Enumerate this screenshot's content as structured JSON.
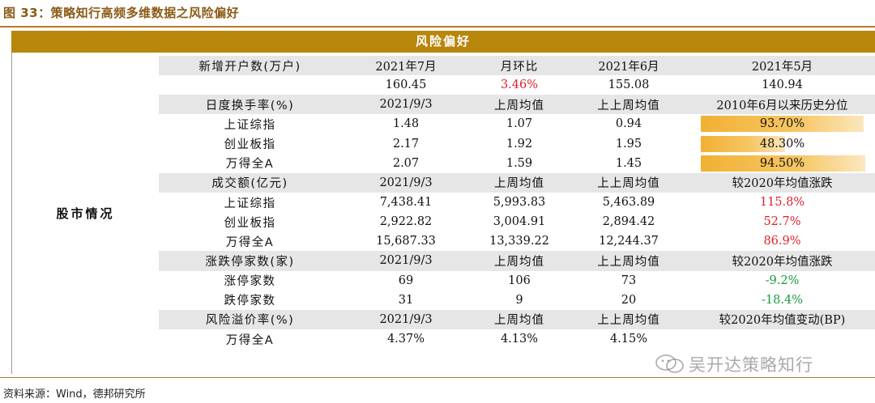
{
  "figure": {
    "title": "图 33：策略知行高频多维数据之风险偏好",
    "header": "风险偏好",
    "side_label": "股市情况"
  },
  "rows": [
    {
      "shade": true,
      "cells": [
        "新增开户数(万户)",
        "2021年7月",
        "月环比",
        "2021年6月",
        "2021年5月"
      ]
    },
    {
      "shade": false,
      "cells": [
        "",
        "160.45",
        "3.46%",
        "155.08",
        "140.94"
      ],
      "colors": [
        "",
        "",
        "red",
        "",
        ""
      ]
    },
    {
      "shade": true,
      "cells": [
        "日度换手率(%)",
        "2021/9/3",
        "上周均值",
        "上上周均值",
        "2010年6月以来历史分位"
      ]
    },
    {
      "shade": false,
      "cells": [
        "上证综指",
        "1.48",
        "1.07",
        "0.94",
        "93.70%"
      ],
      "bar": 0.937
    },
    {
      "shade": false,
      "cells": [
        "创业板指",
        "2.17",
        "1.92",
        "1.95",
        "48.30%"
      ],
      "bar": 0.483
    },
    {
      "shade": false,
      "cells": [
        "万得全A",
        "2.07",
        "1.59",
        "1.45",
        "94.50%"
      ],
      "bar": 0.945
    },
    {
      "shade": true,
      "cells": [
        "成交额(亿元)",
        "2021/9/3",
        "上周均值",
        "上上周均值",
        "较2020年均值涨跌"
      ]
    },
    {
      "shade": false,
      "cells": [
        "上证综指",
        "7,438.41",
        "5,993.83",
        "5,463.89",
        "115.8%"
      ],
      "colors": [
        "",
        "",
        "",
        "",
        "red"
      ]
    },
    {
      "shade": false,
      "cells": [
        "创业板指",
        "2,922.82",
        "3,004.91",
        "2,894.42",
        "52.7%"
      ],
      "colors": [
        "",
        "",
        "",
        "",
        "red"
      ]
    },
    {
      "shade": false,
      "cells": [
        "万得全A",
        "15,687.33",
        "13,339.22",
        "12,244.37",
        "86.9%"
      ],
      "colors": [
        "",
        "",
        "",
        "",
        "red"
      ]
    },
    {
      "shade": true,
      "cells": [
        "涨跌停家数(家)",
        "2021/9/3",
        "上周均值",
        "上上周均值",
        "较2020年均值涨跌"
      ]
    },
    {
      "shade": false,
      "cells": [
        "涨停家数",
        "69",
        "106",
        "73",
        "-9.2%"
      ],
      "colors": [
        "",
        "",
        "",
        "",
        "green"
      ]
    },
    {
      "shade": false,
      "cells": [
        "跌停家数",
        "31",
        "9",
        "20",
        "-18.4%"
      ],
      "colors": [
        "",
        "",
        "",
        "",
        "green"
      ]
    },
    {
      "shade": true,
      "cells": [
        "风险溢价率(%)",
        "2021/9/3",
        "上周均值",
        "上上周均值",
        "较2020年均值变动(BP)"
      ]
    },
    {
      "shade": false,
      "cells": [
        "万得全A",
        "4.37%",
        "4.13%",
        "4.15%",
        ""
      ]
    }
  ],
  "watermark": "吴开达策略知行",
  "source": "资料来源：Wind，德邦研究所",
  "colors": {
    "accent": "#B8860B",
    "title": "#8B5A14",
    "up_red": "#e0202a",
    "down_green": "#1a9a3a",
    "shade": "#e6e6e6"
  }
}
